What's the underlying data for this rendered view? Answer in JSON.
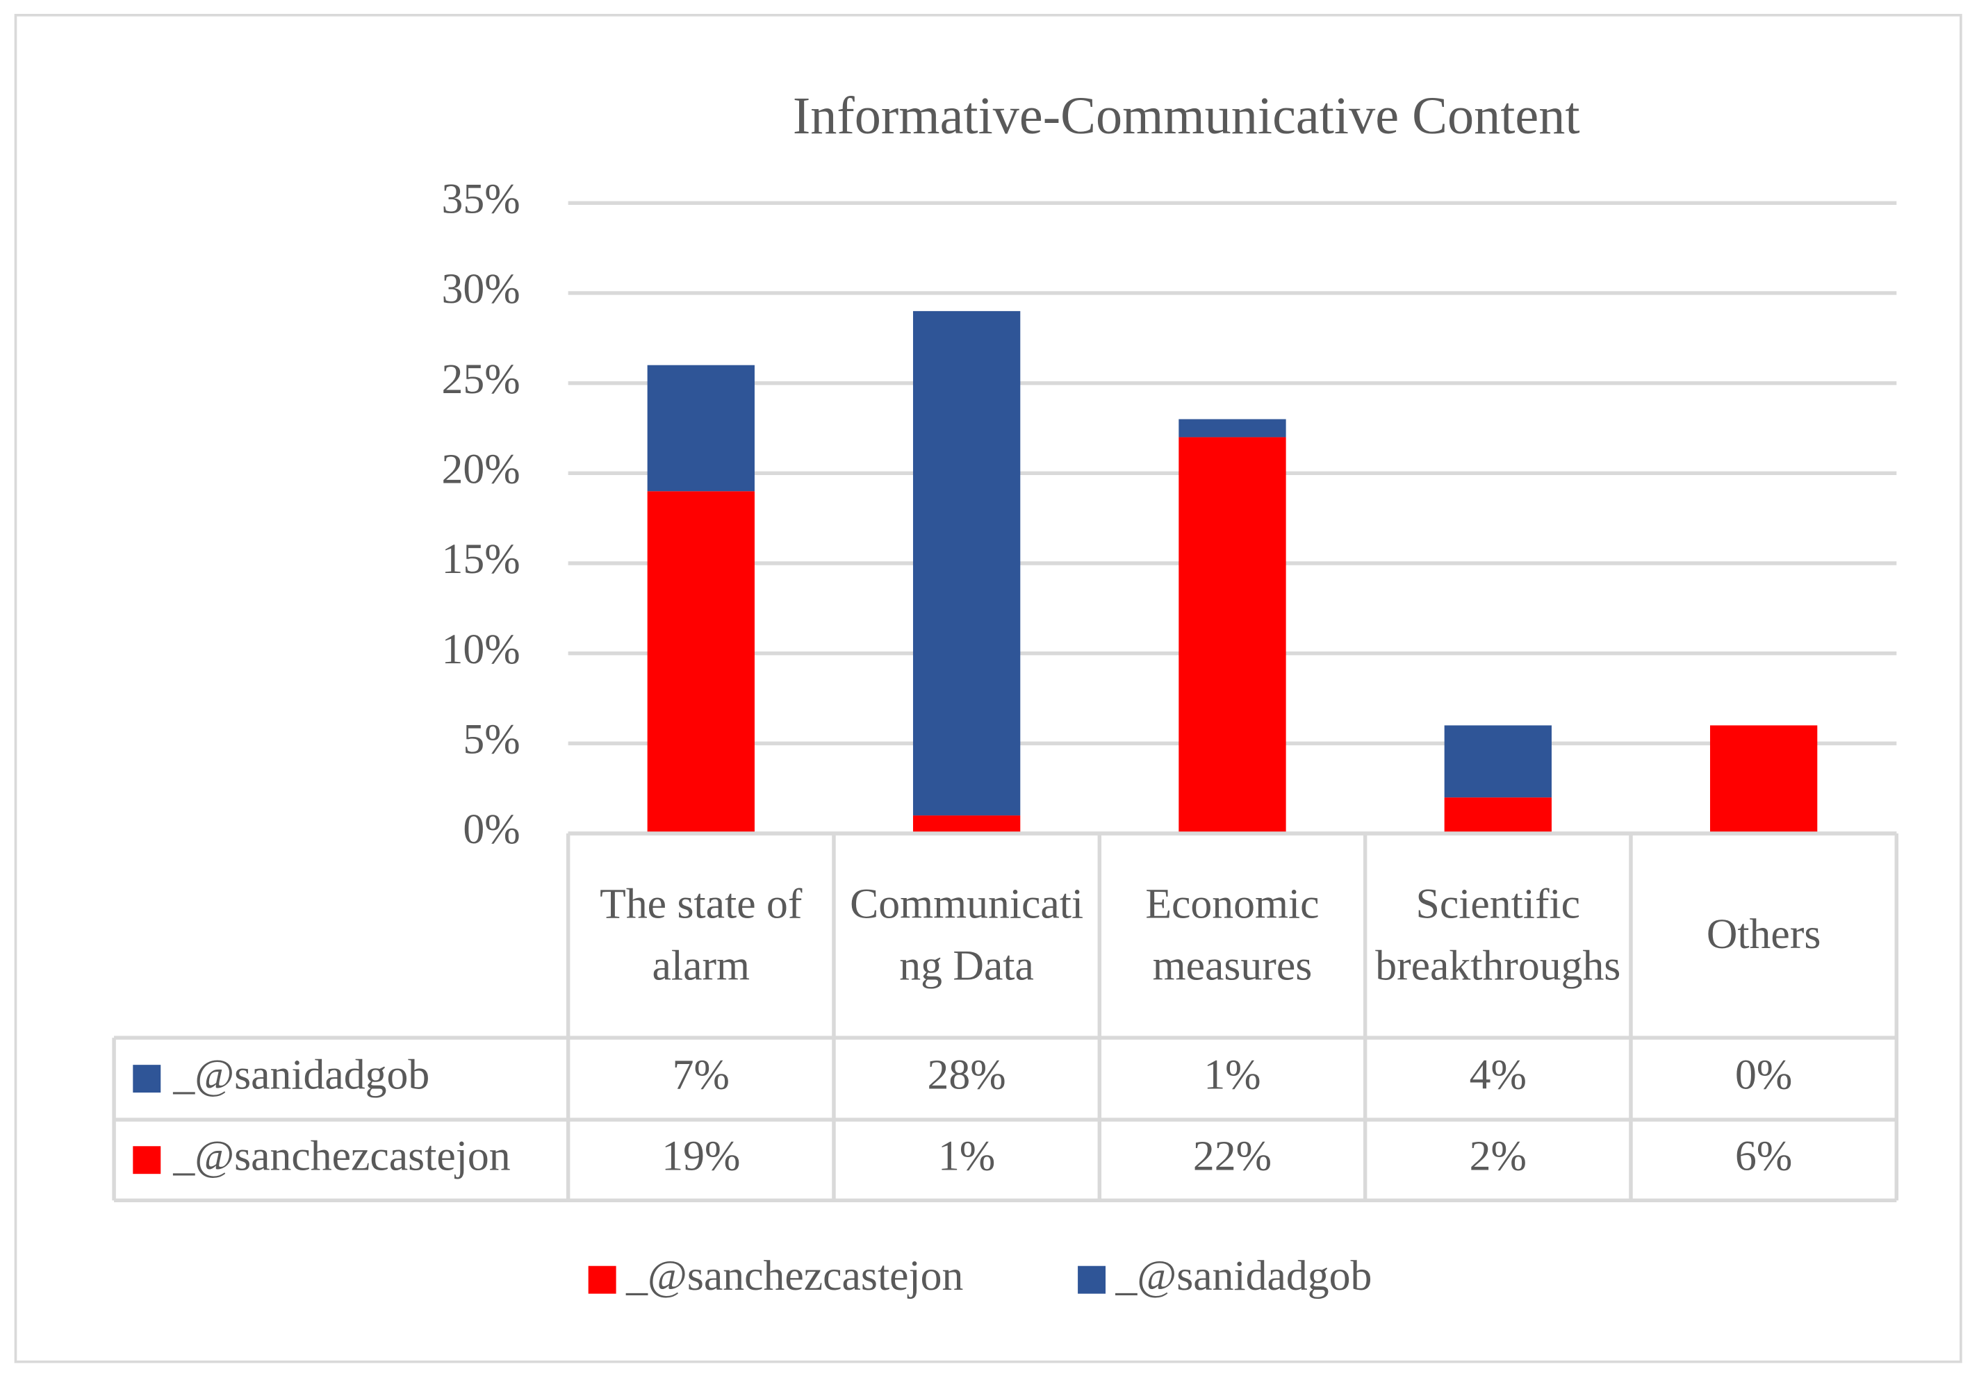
{
  "chart_data": {
    "type": "bar",
    "stacked": true,
    "title": "Informative-Communicative Content",
    "categories": [
      "The state of alarm",
      "Communicating Data",
      "Economic measures",
      "Scientific breakthroughs",
      "Others"
    ],
    "series": [
      {
        "name": "_@sanchezcastejon",
        "color": "#ff0000",
        "values": [
          19,
          1,
          22,
          2,
          6
        ],
        "value_labels": [
          "19%",
          "1%",
          "22%",
          "2%",
          "6%"
        ]
      },
      {
        "name": "_@sanidadgob",
        "color": "#2f5597",
        "values": [
          7,
          28,
          1,
          4,
          0
        ],
        "value_labels": [
          "7%",
          "28%",
          "1%",
          "4%",
          "0%"
        ]
      }
    ],
    "ylim": [
      0,
      35
    ],
    "yticks": [
      {
        "value": 0,
        "label": "0%"
      },
      {
        "value": 5,
        "label": "5%"
      },
      {
        "value": 10,
        "label": "10%"
      },
      {
        "value": 15,
        "label": "15%"
      },
      {
        "value": 20,
        "label": "20%"
      },
      {
        "value": 25,
        "label": "25%"
      },
      {
        "value": 30,
        "label": "30%"
      },
      {
        "value": 35,
        "label": "35%"
      }
    ],
    "grid": true,
    "legend": "bottom",
    "data_table": true
  }
}
